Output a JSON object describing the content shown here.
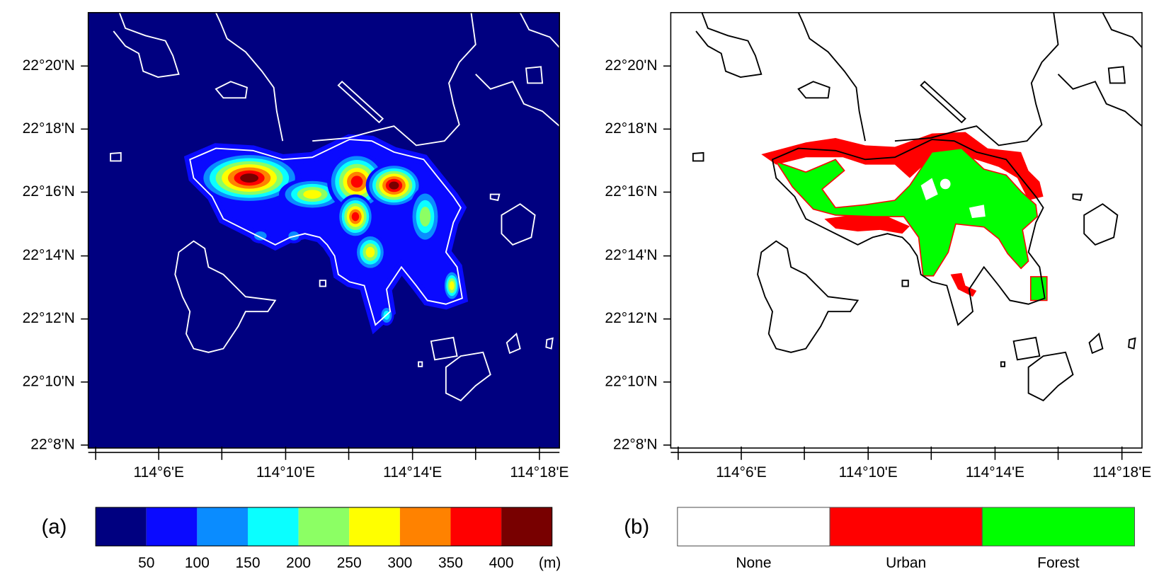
{
  "panels": [
    {
      "label": "(a)",
      "yticks": [
        "22°20'N",
        "22°18'N",
        "22°16'N",
        "22°14'N",
        "22°12'N",
        "22°10'N",
        "22°8'N"
      ],
      "xticks": [
        "114°6'E",
        "114°10'E",
        "114°14'E",
        "114°18'E"
      ],
      "colorbar": {
        "colors": [
          "#000080",
          "#0a0aff",
          "#0a8cff",
          "#0affff",
          "#8cff64",
          "#ffff00",
          "#ff8200",
          "#ff0000",
          "#780000"
        ],
        "labels": [
          "50",
          "100",
          "150",
          "200",
          "250",
          "300",
          "350",
          "400"
        ],
        "unit": "(m)"
      }
    },
    {
      "label": "(b)",
      "yticks": [
        "22°20'N",
        "22°18'N",
        "22°16'N",
        "22°14'N",
        "22°12'N",
        "22°10'N",
        "22°8'N"
      ],
      "xticks": [
        "114°6'E",
        "114°10'E",
        "114°14'E",
        "114°18'E"
      ],
      "legend": {
        "colors": [
          "#ffffff",
          "#ff0000",
          "#00ff00"
        ],
        "labels": [
          "None",
          "Urban",
          "Forest"
        ]
      }
    }
  ]
}
